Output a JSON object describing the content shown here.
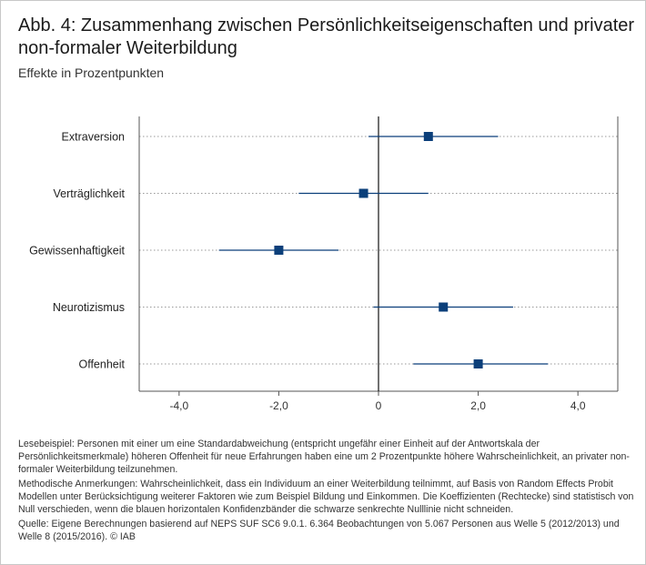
{
  "header": {
    "title": "Abb. 4: Zusammenhang zwischen Persönlichkeitseigenschaften und privater non-formaler Weiterbildung",
    "subtitle": "Effekte in Prozentpunkten"
  },
  "chart_data": {
    "type": "scatter",
    "title": "Abb. 4: Zusammenhang zwischen Persönlichkeitseigenschaften und privater non-formaler Weiterbildung",
    "subtitle": "Effekte in Prozentpunkten",
    "categories": [
      "Extraversion",
      "Verträglichkeit",
      "Gewissenhaftigkeit",
      "Neurotizismus",
      "Offenheit"
    ],
    "estimates": [
      1.0,
      -0.3,
      -2.0,
      1.3,
      2.0
    ],
    "ci_low": [
      -0.2,
      -1.6,
      -3.2,
      -0.1,
      0.7
    ],
    "ci_high": [
      2.4,
      1.0,
      -0.8,
      2.7,
      3.4
    ],
    "xlim": [
      -4.8,
      4.8
    ],
    "xticks": [
      -4,
      -2,
      0,
      2,
      4
    ],
    "xtick_labels": [
      "-4,0",
      "-2,0",
      "0",
      "2,0",
      "4,0"
    ],
    "reference_line": 0,
    "grid": "dotted horizontal guide lines per category",
    "color": "#0b3f7a"
  },
  "notes": {
    "reading_example": "Lesebeispiel: Personen mit einer um eine Standardabweichung (entspricht ungefähr einer Einheit auf der Antwortskala der Persönlichkeitsmerkmale) höheren Offenheit für neue Erfahrungen haben eine um 2 Prozentpunkte höhere Wahrscheinlichkeit, an privater non-formaler Weiterbildung teilzunehmen.",
    "method": "Methodische Anmerkungen: Wahrscheinlichkeit, dass ein Individuum an einer Weiterbildung teilnimmt, auf Basis von Random Effects Probit Modellen unter Berücksichtigung weiterer Faktoren wie zum Beispiel Bildung und Einkommen. Die Koeffizienten (Rechtecke) sind statistisch von Null verschieden, wenn die blauen horizontalen Konfidenzbänder die schwarze senkrechte Nulllinie nicht schneiden.",
    "source": "Quelle: Eigene Berechnungen basierend auf NEPS SUF SC6 9.0.1. 6.364 Beobachtungen von 5.067 Personen aus Welle 5 (2012/2013) und Welle 8 (2015/2016). © IAB"
  }
}
